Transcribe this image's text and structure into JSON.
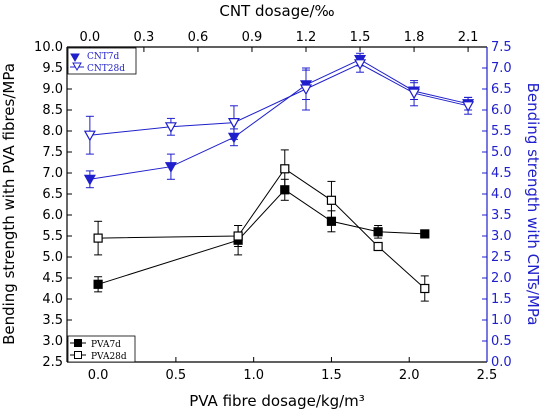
{
  "chart_data": {
    "type": "line",
    "x_bottom": {
      "label": "PVA fibre dosage/kg/m³",
      "ticks": [
        "0.0",
        "0.5",
        "1.0",
        "1.5",
        "2.0",
        "2.5"
      ],
      "tick_values": [
        0,
        0.5,
        1.0,
        1.5,
        2.0,
        2.5
      ],
      "range": [
        -0.2,
        2.5
      ]
    },
    "x_top": {
      "label": "CNT dosage/‰",
      "ticks": [
        "0.0",
        "0.3",
        "0.6",
        "0.9",
        "1.2",
        "1.5",
        "1.8",
        "2.1"
      ],
      "tick_values": [
        0,
        0.3,
        0.6,
        0.9,
        1.2,
        1.5,
        1.8,
        2.1
      ],
      "range": [
        -0.127,
        2.205
      ]
    },
    "y_left": {
      "label": "Bending strength with PVA fibres/MPa",
      "ticks": [
        "2.5",
        "3.0",
        "3.5",
        "4.0",
        "4.5",
        "5.0",
        "5.5",
        "6.0",
        "6.5",
        "7.0",
        "7.5",
        "8.0",
        "8.5",
        "9.0",
        "9.5",
        "10.0"
      ],
      "tick_values": [
        2.5,
        3.0,
        3.5,
        4.0,
        4.5,
        5.0,
        5.5,
        6.0,
        6.5,
        7.0,
        7.5,
        8.0,
        8.5,
        9.0,
        9.5,
        10.0
      ],
      "range": [
        2.5,
        10.0
      ]
    },
    "y_right": {
      "label": "Bending strength with CNTs/MPa",
      "ticks": [
        "0.0",
        "0.5",
        "1.0",
        "1.5",
        "2.0",
        "2.5",
        "3.0",
        "3.5",
        "4.0",
        "4.5",
        "5.0",
        "5.5",
        "6.0",
        "6.5",
        "7.0",
        "7.5"
      ],
      "tick_values": [
        0,
        0.5,
        1.0,
        1.5,
        2.0,
        2.5,
        3.0,
        3.5,
        4.0,
        4.5,
        5.0,
        5.5,
        6.0,
        6.5,
        7.0,
        7.5
      ],
      "range": [
        0,
        7.5
      ]
    },
    "series": [
      {
        "name": "CNT7d",
        "axis": "cnt",
        "marker": "triangle-down-filled",
        "color": "#1f1fcc",
        "x": [
          0.0,
          0.45,
          0.8,
          1.2,
          1.5,
          1.8,
          2.1
        ],
        "y": [
          4.35,
          4.65,
          5.35,
          6.6,
          7.2,
          6.45,
          6.15
        ],
        "err": [
          0.2,
          0.3,
          0.2,
          0.35,
          0.15,
          0.2,
          0.15
        ]
      },
      {
        "name": "CNT28d",
        "axis": "cnt",
        "marker": "triangle-down-open",
        "color": "#1f1fcc",
        "x": [
          0.0,
          0.45,
          0.8,
          1.2,
          1.5,
          1.8,
          2.1
        ],
        "y": [
          5.4,
          5.6,
          5.7,
          6.5,
          7.1,
          6.4,
          6.1
        ],
        "err": [
          0.45,
          0.2,
          0.4,
          0.5,
          0.2,
          0.3,
          0.2
        ]
      },
      {
        "name": "PVA7d",
        "axis": "pva",
        "marker": "square-filled",
        "color": "#000000",
        "x": [
          0.0,
          0.9,
          1.2,
          1.5,
          1.8,
          2.1
        ],
        "y": [
          4.35,
          5.4,
          6.6,
          5.85,
          5.6,
          5.55
        ],
        "err": [
          0.18,
          0.35,
          0.25,
          0.25,
          0.15,
          0.0
        ]
      },
      {
        "name": "PVA28d",
        "axis": "pva",
        "marker": "square-open",
        "color": "#000000",
        "x": [
          0.0,
          0.9,
          1.2,
          1.5,
          1.8,
          2.1
        ],
        "y": [
          5.45,
          5.5,
          7.1,
          6.35,
          5.25,
          4.25
        ],
        "err": [
          0.4,
          0.25,
          0.45,
          0.45,
          0.0,
          0.3
        ]
      }
    ],
    "legends": [
      {
        "position": "top-left",
        "entries": [
          "CNT7d",
          "CNT28d"
        ]
      },
      {
        "position": "bottom-left",
        "entries": [
          "PVA7d",
          "PVA28d"
        ]
      }
    ],
    "grid": false
  }
}
